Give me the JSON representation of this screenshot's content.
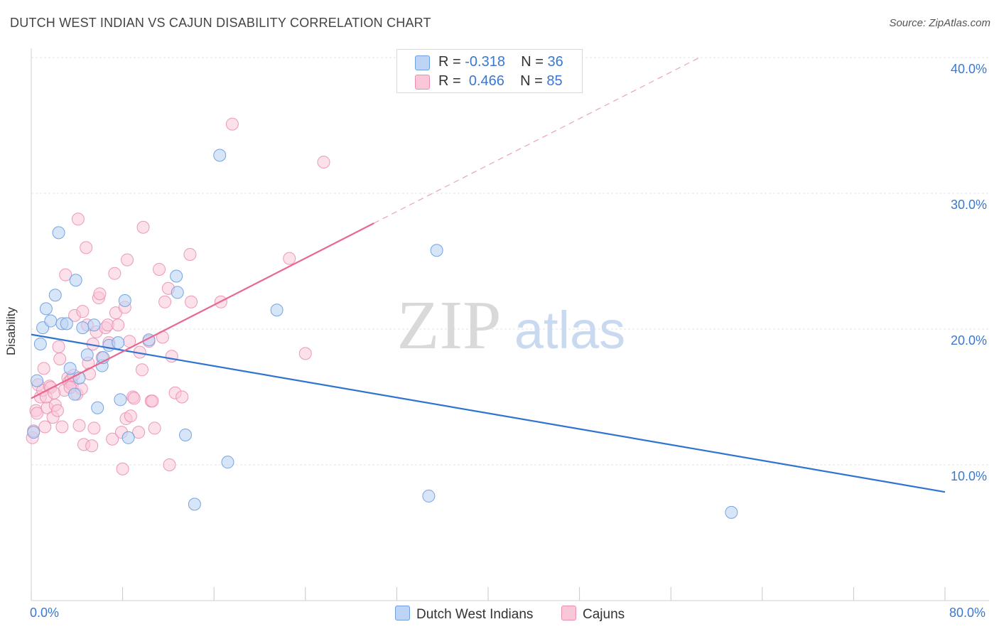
{
  "title": "DUTCH WEST INDIAN VS CAJUN DISABILITY CORRELATION CHART",
  "source": "Source: ZipAtlas.com",
  "watermark": {
    "zip": "ZIP",
    "atlas": "atlas"
  },
  "legend": {
    "r_label": "R =",
    "n_label": "N =",
    "rows": [
      {
        "r": "-0.318",
        "n": "36"
      },
      {
        "r": "0.466",
        "n": "85"
      }
    ]
  },
  "chart_data": {
    "type": "scatter",
    "title": "DUTCH WEST INDIAN VS CAJUN DISABILITY CORRELATION CHART",
    "xlabel": "",
    "ylabel": "Disability",
    "xlim": [
      0,
      80
    ],
    "ylim": [
      0,
      42
    ],
    "x_tick_labels": [
      "0.0%",
      "80.0%"
    ],
    "y_tick_labels": [
      "10.0%",
      "20.0%",
      "30.0%",
      "40.0%"
    ],
    "y_ticks": [
      10,
      20,
      30,
      40
    ],
    "series": [
      {
        "name": "Dutch West Indians",
        "color": "#6f9fe0",
        "fill": "#bdd4f4",
        "line_color": "#2f74d0",
        "r": -0.318,
        "n": 36,
        "trend": {
          "x0": 0,
          "y0": 19.6,
          "x1": 80,
          "y1": 8.0
        },
        "points": [
          [
            0.2,
            12.4
          ],
          [
            0.5,
            16.2
          ],
          [
            0.8,
            18.9
          ],
          [
            1.0,
            20.1
          ],
          [
            1.3,
            21.5
          ],
          [
            1.7,
            20.6
          ],
          [
            2.1,
            22.5
          ],
          [
            2.4,
            27.1
          ],
          [
            2.7,
            20.4
          ],
          [
            3.1,
            20.4
          ],
          [
            3.4,
            17.1
          ],
          [
            3.8,
            15.2
          ],
          [
            3.9,
            23.6
          ],
          [
            4.2,
            16.4
          ],
          [
            4.5,
            20.1
          ],
          [
            4.9,
            18.1
          ],
          [
            5.5,
            20.3
          ],
          [
            5.8,
            14.2
          ],
          [
            6.2,
            17.3
          ],
          [
            6.3,
            17.9
          ],
          [
            6.8,
            18.8
          ],
          [
            7.6,
            19.0
          ],
          [
            7.8,
            14.8
          ],
          [
            8.2,
            22.1
          ],
          [
            8.5,
            12.0
          ],
          [
            10.3,
            19.2
          ],
          [
            12.7,
            23.9
          ],
          [
            12.8,
            22.7
          ],
          [
            13.5,
            12.2
          ],
          [
            14.3,
            7.1
          ],
          [
            16.5,
            32.8
          ],
          [
            17.2,
            10.2
          ],
          [
            21.5,
            21.4
          ],
          [
            34.8,
            7.7
          ],
          [
            35.5,
            25.8
          ],
          [
            61.3,
            6.5
          ]
        ]
      },
      {
        "name": "Cajuns",
        "color": "#ea8fb0",
        "fill": "#f9c7d8",
        "line_color": "#e86892",
        "r": 0.466,
        "n": 85,
        "trend": {
          "x0": 0,
          "y0": 14.9,
          "x1": 30,
          "y1": 27.8,
          "dash_x1": 58.5,
          "dash_y1": 40.0
        },
        "points": [
          [
            0.1,
            12.0
          ],
          [
            0.2,
            12.5
          ],
          [
            0.4,
            14.0
          ],
          [
            0.5,
            13.8
          ],
          [
            0.6,
            15.9
          ],
          [
            0.8,
            15.0
          ],
          [
            1.0,
            15.5
          ],
          [
            1.1,
            17.1
          ],
          [
            1.2,
            12.8
          ],
          [
            1.4,
            14.2
          ],
          [
            1.6,
            15.8
          ],
          [
            1.7,
            15.7
          ],
          [
            1.9,
            13.5
          ],
          [
            2.1,
            14.4
          ],
          [
            2.3,
            14.0
          ],
          [
            2.4,
            18.7
          ],
          [
            2.5,
            17.8
          ],
          [
            2.7,
            12.8
          ],
          [
            2.9,
            15.5
          ],
          [
            3.0,
            24.0
          ],
          [
            3.2,
            16.4
          ],
          [
            3.3,
            16.1
          ],
          [
            3.5,
            16.3
          ],
          [
            3.6,
            15.9
          ],
          [
            3.7,
            16.6
          ],
          [
            3.8,
            21.0
          ],
          [
            4.0,
            15.2
          ],
          [
            4.1,
            28.1
          ],
          [
            4.2,
            12.9
          ],
          [
            4.4,
            15.6
          ],
          [
            4.5,
            21.3
          ],
          [
            4.6,
            11.5
          ],
          [
            4.8,
            26.0
          ],
          [
            4.9,
            20.3
          ],
          [
            5.0,
            17.5
          ],
          [
            5.1,
            16.7
          ],
          [
            5.3,
            11.4
          ],
          [
            5.4,
            18.9
          ],
          [
            5.5,
            12.7
          ],
          [
            5.7,
            19.8
          ],
          [
            5.9,
            22.3
          ],
          [
            6.0,
            22.6
          ],
          [
            6.2,
            17.9
          ],
          [
            6.5,
            20.1
          ],
          [
            6.7,
            20.3
          ],
          [
            6.8,
            19.0
          ],
          [
            7.1,
            11.9
          ],
          [
            7.3,
            24.1
          ],
          [
            7.4,
            21.2
          ],
          [
            7.6,
            20.3
          ],
          [
            7.9,
            12.4
          ],
          [
            8.0,
            9.7
          ],
          [
            8.2,
            21.6
          ],
          [
            8.3,
            13.4
          ],
          [
            8.4,
            25.1
          ],
          [
            8.6,
            19.1
          ],
          [
            8.7,
            13.6
          ],
          [
            8.9,
            15.0
          ],
          [
            9.0,
            14.9
          ],
          [
            9.4,
            12.4
          ],
          [
            9.5,
            18.3
          ],
          [
            9.7,
            17.0
          ],
          [
            9.8,
            27.5
          ],
          [
            10.3,
            19.1
          ],
          [
            10.5,
            14.7
          ],
          [
            10.6,
            14.7
          ],
          [
            10.8,
            12.7
          ],
          [
            11.2,
            24.4
          ],
          [
            11.5,
            19.4
          ],
          [
            11.7,
            22.0
          ],
          [
            12.0,
            23.0
          ],
          [
            12.1,
            10.0
          ],
          [
            12.3,
            18.0
          ],
          [
            12.6,
            15.3
          ],
          [
            13.2,
            15.0
          ],
          [
            13.9,
            25.5
          ],
          [
            14.0,
            22.0
          ],
          [
            16.6,
            22.0
          ],
          [
            17.6,
            35.1
          ],
          [
            22.6,
            25.2
          ],
          [
            24.0,
            18.2
          ],
          [
            25.6,
            32.3
          ],
          [
            1.3,
            15.0
          ],
          [
            2.0,
            15.3
          ],
          [
            3.4,
            15.7
          ]
        ]
      }
    ]
  }
}
